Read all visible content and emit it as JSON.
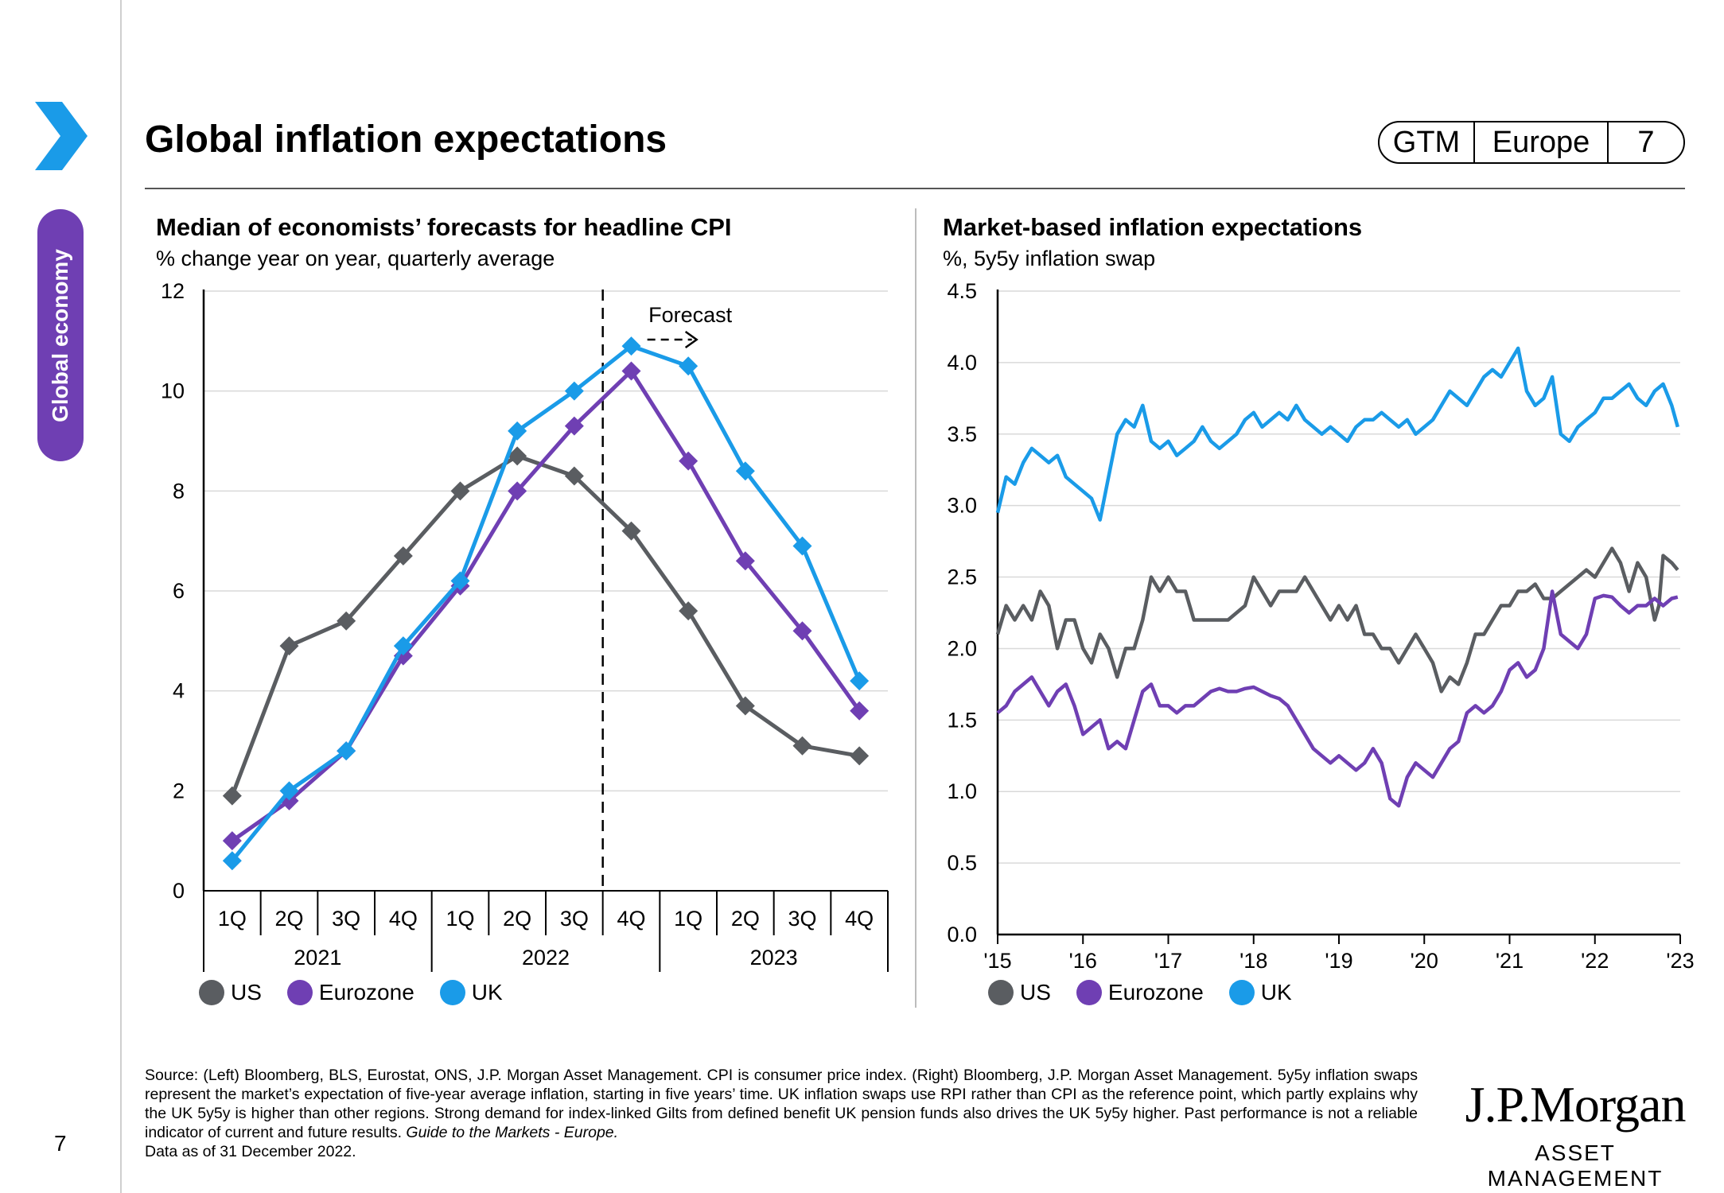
{
  "header": {
    "title": "Global inflation expectations",
    "tags": [
      "GTM",
      "Europe",
      "7"
    ],
    "section": "Global economy",
    "page_number": "7"
  },
  "footer": {
    "source_text": "Source: (Left) Bloomberg, BLS, Eurostat, ONS, J.P. Morgan Asset Management. CPI is consumer price index. (Right) Bloomberg, J.P. Morgan Asset Management. 5y5y inflation swaps represent the market’s expectation of five-year average inflation, starting in five years’ time. UK inflation swaps use RPI rather than CPI as the reference point, which partly explains why the UK 5y5y is higher than other regions. Strong demand for index-linked Gilts from defined benefit UK pension funds also drives the UK 5y5y higher. Past performance is not a reliable indicator of current and future results.",
    "guide_text": "Guide to the Markets - Europe.",
    "date_text": "Data as of 31 December 2022.",
    "brand_main": "J.P.Morgan",
    "brand_sub": "ASSET MANAGEMENT"
  },
  "colors": {
    "US": "#5a5d61",
    "Eurozone": "#6f3fb3",
    "UK": "#1a9be8",
    "accent": "#6f3fb3"
  },
  "chart_data": [
    {
      "type": "line",
      "title": "Median of economists’ forecasts for headline CPI",
      "subtitle": "% change year on year, quarterly average",
      "categories": [
        "1Q",
        "2Q",
        "3Q",
        "4Q",
        "1Q",
        "2Q",
        "3Q",
        "4Q",
        "1Q",
        "2Q",
        "3Q",
        "4Q"
      ],
      "year_groups": [
        {
          "label": "2021",
          "count": 4
        },
        {
          "label": "2022",
          "count": 4
        },
        {
          "label": "2023",
          "count": 4
        }
      ],
      "yticks": [
        "0",
        "2",
        "4",
        "6",
        "8",
        "10",
        "12"
      ],
      "ylim": [
        0,
        12
      ],
      "forecast_label": "Forecast",
      "forecast_starts_after_index": 6,
      "markers": "diamond",
      "grid": true,
      "legend": "bottom-left",
      "series": [
        {
          "name": "US",
          "values": [
            1.9,
            4.9,
            5.4,
            6.7,
            8.0,
            8.7,
            8.3,
            7.2,
            5.6,
            3.7,
            2.9,
            2.7
          ]
        },
        {
          "name": "Eurozone",
          "values": [
            1.0,
            1.8,
            2.8,
            4.7,
            6.1,
            8.0,
            9.3,
            10.4,
            8.6,
            6.6,
            5.2,
            3.6
          ]
        },
        {
          "name": "UK",
          "values": [
            0.6,
            2.0,
            2.8,
            4.9,
            6.2,
            9.2,
            10.0,
            10.9,
            10.5,
            8.4,
            6.9,
            4.2
          ]
        }
      ]
    },
    {
      "type": "line",
      "title": "Market-based inflation expectations",
      "subtitle": "%, 5y5y inflation swap",
      "xticks": [
        "'15",
        "'16",
        "'17",
        "'18",
        "'19",
        "'20",
        "'21",
        "'22",
        "'23"
      ],
      "xlim": [
        2015,
        2023
      ],
      "yticks": [
        "0.0",
        "0.5",
        "1.0",
        "1.5",
        "2.0",
        "2.5",
        "3.0",
        "3.5",
        "4.0",
        "4.5"
      ],
      "ylim": [
        0,
        4.5
      ],
      "grid": true,
      "legend": "bottom-left",
      "series": [
        {
          "name": "US",
          "x": [
            2015,
            2015.1,
            2015.2,
            2015.3,
            2015.4,
            2015.5,
            2015.6,
            2015.7,
            2015.8,
            2015.9,
            2016,
            2016.1,
            2016.2,
            2016.3,
            2016.4,
            2016.5,
            2016.6,
            2016.7,
            2016.8,
            2016.9,
            2017,
            2017.1,
            2017.2,
            2017.3,
            2017.4,
            2017.5,
            2017.7,
            2017.9,
            2018,
            2018.1,
            2018.2,
            2018.3,
            2018.4,
            2018.5,
            2018.6,
            2018.7,
            2018.8,
            2018.9,
            2019,
            2019.1,
            2019.2,
            2019.3,
            2019.4,
            2019.5,
            2019.6,
            2019.7,
            2019.8,
            2019.9,
            2020,
            2020.1,
            2020.2,
            2020.3,
            2020.4,
            2020.5,
            2020.6,
            2020.7,
            2020.8,
            2020.9,
            2021,
            2021.1,
            2021.2,
            2021.3,
            2021.4,
            2021.5,
            2021.6,
            2021.7,
            2021.8,
            2021.9,
            2022,
            2022.1,
            2022.2,
            2022.3,
            2022.4,
            2022.5,
            2022.6,
            2022.7,
            2022.75,
            2022.8,
            2022.9,
            2022.97
          ],
          "values": [
            2.1,
            2.3,
            2.2,
            2.3,
            2.2,
            2.4,
            2.3,
            2.0,
            2.2,
            2.2,
            2.0,
            1.9,
            2.1,
            2.0,
            1.8,
            2.0,
            2.0,
            2.2,
            2.5,
            2.4,
            2.5,
            2.4,
            2.4,
            2.2,
            2.2,
            2.2,
            2.2,
            2.3,
            2.5,
            2.4,
            2.3,
            2.4,
            2.4,
            2.4,
            2.5,
            2.4,
            2.3,
            2.2,
            2.3,
            2.2,
            2.3,
            2.1,
            2.1,
            2.0,
            2.0,
            1.9,
            2.0,
            2.1,
            2.0,
            1.9,
            1.7,
            1.8,
            1.75,
            1.9,
            2.1,
            2.1,
            2.2,
            2.3,
            2.3,
            2.4,
            2.4,
            2.45,
            2.35,
            2.35,
            2.4,
            2.45,
            2.5,
            2.55,
            2.5,
            2.6,
            2.7,
            2.6,
            2.4,
            2.6,
            2.5,
            2.2,
            2.3,
            2.65,
            2.6,
            2.55
          ]
        },
        {
          "name": "Eurozone",
          "x": [
            2015,
            2015.1,
            2015.2,
            2015.3,
            2015.4,
            2015.5,
            2015.6,
            2015.7,
            2015.8,
            2015.9,
            2016,
            2016.1,
            2016.2,
            2016.3,
            2016.4,
            2016.5,
            2016.6,
            2016.7,
            2016.8,
            2016.9,
            2017,
            2017.1,
            2017.2,
            2017.3,
            2017.4,
            2017.5,
            2017.6,
            2017.7,
            2017.8,
            2017.9,
            2018,
            2018.1,
            2018.2,
            2018.3,
            2018.4,
            2018.5,
            2018.6,
            2018.7,
            2018.8,
            2018.9,
            2019,
            2019.1,
            2019.2,
            2019.3,
            2019.4,
            2019.5,
            2019.6,
            2019.7,
            2019.8,
            2019.9,
            2020,
            2020.1,
            2020.2,
            2020.3,
            2020.4,
            2020.5,
            2020.6,
            2020.7,
            2020.8,
            2020.9,
            2021,
            2021.1,
            2021.2,
            2021.3,
            2021.4,
            2021.5,
            2021.6,
            2021.7,
            2021.8,
            2021.9,
            2022,
            2022.1,
            2022.2,
            2022.3,
            2022.4,
            2022.5,
            2022.6,
            2022.7,
            2022.8,
            2022.9,
            2022.97
          ],
          "values": [
            1.55,
            1.6,
            1.7,
            1.75,
            1.8,
            1.7,
            1.6,
            1.7,
            1.75,
            1.6,
            1.4,
            1.45,
            1.5,
            1.3,
            1.35,
            1.3,
            1.5,
            1.7,
            1.75,
            1.6,
            1.6,
            1.55,
            1.6,
            1.6,
            1.65,
            1.7,
            1.72,
            1.7,
            1.7,
            1.72,
            1.73,
            1.7,
            1.67,
            1.65,
            1.6,
            1.5,
            1.4,
            1.3,
            1.25,
            1.2,
            1.25,
            1.2,
            1.15,
            1.2,
            1.3,
            1.2,
            0.95,
            0.9,
            1.1,
            1.2,
            1.15,
            1.1,
            1.2,
            1.3,
            1.35,
            1.55,
            1.6,
            1.55,
            1.6,
            1.7,
            1.85,
            1.9,
            1.8,
            1.85,
            2.0,
            2.4,
            2.1,
            2.05,
            2.0,
            2.1,
            2.35,
            2.37,
            2.36,
            2.3,
            2.25,
            2.3,
            2.3,
            2.35,
            2.3,
            2.35,
            2.36
          ]
        },
        {
          "name": "UK",
          "x": [
            2015,
            2015.1,
            2015.2,
            2015.3,
            2015.4,
            2015.5,
            2015.6,
            2015.7,
            2015.8,
            2015.9,
            2016,
            2016.1,
            2016.2,
            2016.3,
            2016.4,
            2016.5,
            2016.6,
            2016.7,
            2016.8,
            2016.9,
            2017,
            2017.1,
            2017.2,
            2017.3,
            2017.4,
            2017.5,
            2017.6,
            2017.7,
            2017.8,
            2017.9,
            2018,
            2018.1,
            2018.2,
            2018.3,
            2018.4,
            2018.5,
            2018.6,
            2018.7,
            2018.8,
            2018.9,
            2019,
            2019.1,
            2019.2,
            2019.3,
            2019.4,
            2019.5,
            2019.6,
            2019.7,
            2019.8,
            2019.9,
            2020,
            2020.1,
            2020.2,
            2020.3,
            2020.4,
            2020.5,
            2020.6,
            2020.7,
            2020.8,
            2020.9,
            2021,
            2021.1,
            2021.2,
            2021.3,
            2021.4,
            2021.5,
            2021.6,
            2021.7,
            2021.8,
            2021.9,
            2022,
            2022.1,
            2022.2,
            2022.3,
            2022.4,
            2022.5,
            2022.6,
            2022.7,
            2022.8,
            2022.9,
            2022.97
          ],
          "values": [
            2.95,
            3.2,
            3.15,
            3.3,
            3.4,
            3.35,
            3.3,
            3.35,
            3.2,
            3.15,
            3.1,
            3.05,
            2.9,
            3.2,
            3.5,
            3.6,
            3.55,
            3.7,
            3.45,
            3.4,
            3.45,
            3.35,
            3.4,
            3.45,
            3.55,
            3.45,
            3.4,
            3.45,
            3.5,
            3.6,
            3.65,
            3.55,
            3.6,
            3.65,
            3.6,
            3.7,
            3.6,
            3.55,
            3.5,
            3.55,
            3.5,
            3.45,
            3.55,
            3.6,
            3.6,
            3.65,
            3.6,
            3.55,
            3.6,
            3.5,
            3.55,
            3.6,
            3.7,
            3.8,
            3.75,
            3.7,
            3.8,
            3.9,
            3.95,
            3.9,
            4.0,
            4.1,
            3.8,
            3.7,
            3.75,
            3.9,
            3.5,
            3.45,
            3.55,
            3.6,
            3.65,
            3.75,
            3.75,
            3.8,
            3.85,
            3.75,
            3.7,
            3.8,
            3.85,
            3.7,
            3.55
          ]
        }
      ]
    }
  ]
}
